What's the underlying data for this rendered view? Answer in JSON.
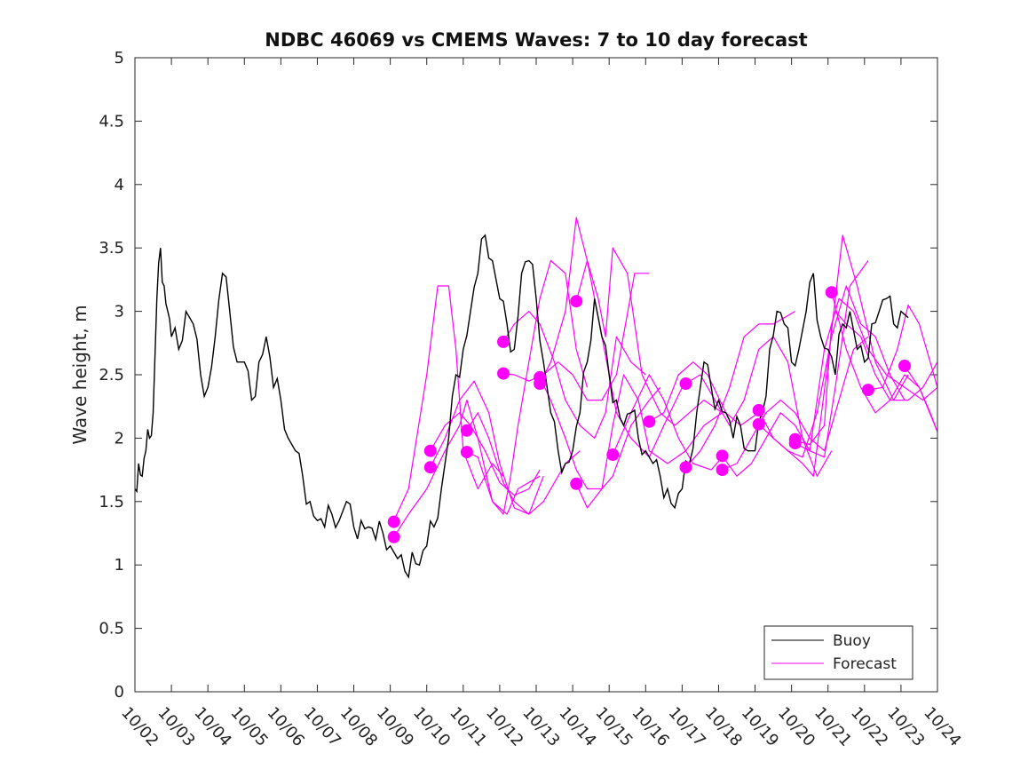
{
  "chart_data": {
    "type": "line",
    "title": "NDBC 46069 vs CMEMS Waves: 7 to 10 day forecast",
    "xlabel": "",
    "ylabel": "Wave height, m",
    "x_unit": "days since 10/02",
    "xlim": [
      0,
      22
    ],
    "ylim": [
      0,
      5
    ],
    "yticks": [
      0,
      0.5,
      1,
      1.5,
      2,
      2.5,
      3,
      3.5,
      4,
      4.5,
      5
    ],
    "ytick_labels": [
      "0",
      "0.5",
      "1",
      "1.5",
      "2",
      "2.5",
      "3",
      "3.5",
      "4",
      "4.5",
      "5"
    ],
    "xtick_labels": [
      "10/02",
      "10/03",
      "10/04",
      "10/05",
      "10/06",
      "10/07",
      "10/08",
      "10/09",
      "10/10",
      "10/11",
      "10/12",
      "10/13",
      "10/14",
      "10/15",
      "10/16",
      "10/17",
      "10/18",
      "10/19",
      "10/20",
      "10/21",
      "10/22",
      "10/23",
      "10/24"
    ],
    "grid": false,
    "legend_position": "bottom-right",
    "legend": [
      "Buoy",
      "Forecast"
    ],
    "colors": {
      "buoy": "#000000",
      "forecast": "#ff00ff",
      "axis": "#262626"
    },
    "buoy": {
      "name": "Buoy",
      "x": [
        0,
        0.1,
        0.2,
        0.3,
        0.4,
        0.5,
        0.6,
        0.7,
        0.8,
        0.9,
        1,
        1.2,
        1.4,
        1.6,
        1.8,
        2,
        2.2,
        2.4,
        2.6,
        2.8,
        3,
        3.2,
        3.4,
        3.6,
        3.8,
        4,
        4.2,
        4.4,
        4.6,
        4.8,
        5,
        5.2,
        5.4,
        5.6,
        5.8,
        6,
        6.2,
        6.4,
        6.6,
        6.8,
        7,
        7.2,
        7.4,
        7.6,
        7.8,
        8,
        8.2,
        8.4,
        8.6,
        8.8,
        9,
        9.2,
        9.4,
        9.6,
        9.8,
        10,
        10.2,
        10.4,
        10.6,
        10.8,
        11,
        11.2,
        11.4,
        11.6,
        11.8,
        12,
        12.2,
        12.4,
        12.6,
        12.8,
        13,
        13.2,
        13.4,
        13.6,
        13.8,
        14,
        14.2,
        14.4,
        14.6,
        14.8,
        15,
        15.2,
        15.4,
        15.6,
        15.8,
        16,
        16.2,
        16.4,
        16.6,
        16.8,
        17,
        17.2,
        17.4,
        17.6,
        17.8,
        18,
        18.2,
        18.4,
        18.6,
        18.8,
        19,
        19.2,
        19.4,
        19.6,
        19.8,
        20,
        20.2,
        20.4,
        20.6,
        20.8,
        21,
        21.2
      ],
      "values": [
        1.6,
        1.8,
        1.7,
        1.9,
        2.0,
        2.2,
        3.1,
        3.5,
        3.2,
        3.0,
        2.8,
        2.7,
        3.0,
        2.9,
        2.5,
        2.4,
        2.8,
        3.3,
        3.0,
        2.6,
        2.6,
        2.3,
        2.6,
        2.8,
        2.4,
        2.3,
        2.0,
        1.9,
        1.7,
        1.5,
        1.35,
        1.3,
        1.4,
        1.35,
        1.5,
        1.3,
        1.35,
        1.3,
        1.2,
        1.25,
        1.15,
        1.05,
        0.95,
        1.1,
        1.0,
        1.15,
        1.3,
        1.6,
        2.0,
        2.5,
        2.7,
        3.0,
        3.3,
        3.6,
        3.4,
        3.1,
        2.9,
        2.7,
        3.3,
        3.4,
        3.1,
        2.6,
        2.2,
        1.9,
        1.8,
        1.9,
        2.2,
        2.6,
        3.1,
        2.8,
        2.5,
        2.3,
        2.1,
        2.2,
        2.0,
        1.9,
        1.8,
        1.7,
        1.6,
        1.45,
        1.6,
        1.8,
        2.2,
        2.6,
        2.4,
        2.3,
        2.2,
        2.0,
        2.1,
        1.9,
        1.9,
        2.2,
        2.7,
        3.0,
        2.9,
        2.6,
        2.7,
        3.0,
        3.3,
        2.8,
        2.7,
        2.5,
        2.9,
        3.0,
        2.7,
        2.6,
        2.9,
        3.0,
        3.1,
        2.9,
        3.0,
        2.95
      ]
    },
    "forecast_runs": [
      {
        "x": [
          7.1,
          7.5,
          8,
          8.3,
          8.6,
          8.8,
          9,
          9.4,
          9.8,
          10.1
        ],
        "values": [
          1.35,
          1.6,
          2.5,
          3.2,
          3.2,
          2.7,
          1.9,
          1.6,
          1.8,
          1.7
        ]
      },
      {
        "x": [
          7.1,
          7.5,
          8,
          8.5,
          8.9,
          9.1,
          9.4,
          9.8,
          10.2,
          10.5,
          11.1
        ],
        "values": [
          1.22,
          1.4,
          1.6,
          1.9,
          2.1,
          2.3,
          2.0,
          1.5,
          1.4,
          1.6,
          1.7
        ]
      },
      {
        "x": [
          8.1,
          8.5,
          8.9,
          9.2,
          9.6,
          10,
          10.4,
          10.8,
          11.1
        ],
        "values": [
          1.9,
          2.1,
          2.2,
          2.1,
          1.9,
          1.65,
          1.55,
          1.6,
          1.75
        ]
      },
      {
        "x": [
          8.1,
          8.5,
          8.9,
          9.3,
          9.7,
          10,
          10.4,
          10.8,
          11.2,
          11.8,
          12.2
        ],
        "values": [
          1.77,
          2.0,
          2.3,
          2.45,
          2.2,
          1.8,
          1.45,
          1.4,
          1.5,
          1.8,
          1.9
        ]
      },
      {
        "x": [
          9.1,
          9.4,
          9.7,
          10.1,
          10.4,
          10.8,
          11.2
        ],
        "values": [
          2.06,
          2.2,
          2.0,
          1.65,
          1.5,
          1.4,
          1.7
        ]
      },
      {
        "x": [
          9.1,
          9.4,
          9.8,
          10.1,
          10.3,
          10.5,
          10.8,
          11.1,
          11.4,
          11.8,
          12.1,
          12.4
        ],
        "values": [
          1.89,
          1.85,
          1.5,
          1.4,
          1.7,
          2.1,
          2.6,
          3.1,
          3.4,
          3.3,
          2.7,
          2.4
        ]
      },
      {
        "x": [
          10.1,
          10.4,
          10.8,
          11.1,
          11.5,
          11.8,
          12.2,
          12.6,
          12.9,
          13.2,
          13.6,
          14
        ],
        "values": [
          2.76,
          2.9,
          3.0,
          2.9,
          2.6,
          2.3,
          2.1,
          2.0,
          2.2,
          2.8,
          2.6,
          2.5
        ]
      },
      {
        "x": [
          10.1,
          10.4,
          10.8,
          11.2,
          11.6,
          12,
          12.4,
          12.8,
          13.2,
          13.7,
          14.1
        ],
        "values": [
          2.51,
          2.5,
          2.45,
          2.5,
          2.6,
          2.5,
          2.3,
          2.3,
          2.5,
          3.3,
          3.3
        ]
      },
      {
        "x": [
          11.1,
          11.4,
          11.8,
          12.1,
          12.4,
          12.8,
          13.1,
          13.6,
          14.1,
          14.4
        ],
        "values": [
          2.48,
          2.3,
          2.0,
          1.75,
          1.6,
          1.6,
          1.7,
          2.1,
          2.3,
          2.4
        ]
      },
      {
        "x": [
          11.1,
          11.4,
          11.8,
          12.1,
          12.4,
          12.8,
          13.2,
          13.6,
          14.1,
          14.5,
          15
        ],
        "values": [
          2.43,
          2.6,
          3.0,
          3.74,
          3.4,
          2.8,
          2.2,
          2.0,
          1.85,
          2.1,
          2.4
        ]
      },
      {
        "x": [
          12.1,
          12.4,
          12.8,
          13.1,
          13.4,
          13.8,
          14.1,
          14.6,
          15.1,
          15.6,
          16.1
        ],
        "values": [
          1.64,
          1.45,
          1.6,
          2.1,
          2.5,
          2.3,
          1.9,
          1.8,
          1.9,
          2.1,
          2.2
        ]
      },
      {
        "x": [
          12.1,
          12.4,
          12.7,
          12.9,
          13.1,
          13.5,
          13.9,
          14.4,
          14.8,
          15.2,
          15.6,
          16.1
        ],
        "values": [
          3.08,
          3.4,
          3.1,
          2.8,
          3.5,
          3.3,
          2.5,
          2.2,
          2.1,
          2.2,
          2.3,
          2.2
        ]
      },
      {
        "x": [
          13.1,
          13.6,
          14.1,
          14.5,
          14.9,
          15.3,
          15.8,
          16.1
        ],
        "values": [
          1.87,
          2.2,
          2.5,
          2.3,
          2.0,
          1.8,
          1.75,
          1.85
        ]
      },
      {
        "x": [
          14.1,
          14.5,
          14.9,
          15.3,
          15.7,
          16.2,
          16.6,
          17.1
        ],
        "values": [
          2.13,
          2.2,
          2.5,
          2.6,
          2.5,
          2.2,
          2.1,
          2.2
        ]
      },
      {
        "x": [
          15.1,
          15.5,
          15.9,
          16.3,
          16.7,
          17.1,
          17.5,
          18.1
        ],
        "values": [
          1.77,
          1.9,
          2.1,
          2.4,
          2.8,
          2.9,
          2.9,
          3.0
        ]
      },
      {
        "x": [
          15.1,
          15.5,
          15.9,
          16.3,
          16.7,
          17.1,
          17.5,
          17.9,
          18.3,
          18.7,
          19.1
        ],
        "values": [
          2.43,
          2.5,
          2.3,
          2.1,
          2.3,
          2.7,
          2.8,
          2.6,
          2.0,
          1.7,
          1.9
        ]
      },
      {
        "x": [
          16.1,
          16.5,
          16.9,
          17.3,
          17.7,
          18.1,
          18.5,
          18.9,
          19.2,
          19.6,
          20.1
        ],
        "values": [
          1.86,
          1.7,
          1.8,
          2.0,
          2.2,
          2.1,
          1.9,
          1.85,
          2.4,
          3.2,
          3.4
        ]
      },
      {
        "x": [
          16.1,
          16.5,
          16.9,
          17.3,
          17.7,
          18.1,
          18.5,
          18.9,
          19.3,
          19.7,
          20.1
        ],
        "values": [
          1.75,
          1.8,
          2.0,
          2.2,
          2.3,
          2.2,
          2.0,
          1.9,
          2.3,
          2.7,
          2.8
        ]
      },
      {
        "x": [
          17.1,
          17.5,
          17.9,
          18.3,
          18.7,
          19.1,
          19.5,
          19.9,
          20.3,
          20.7,
          21.1
        ],
        "values": [
          2.22,
          2.0,
          1.9,
          1.85,
          2.2,
          2.8,
          3.2,
          2.9,
          2.8,
          2.5,
          2.3
        ]
      },
      {
        "x": [
          17.1,
          17.5,
          17.9,
          18.3,
          18.6,
          19,
          19.4,
          19.8,
          20.3,
          20.8,
          21.2
        ],
        "values": [
          2.11,
          2.0,
          1.9,
          1.8,
          1.7,
          2.6,
          3.6,
          3.2,
          2.6,
          2.3,
          2.5
        ]
      },
      {
        "x": [
          18.1,
          18.5,
          18.9,
          19.2,
          19.5,
          19.9,
          20.3,
          20.7,
          21.2,
          21.6,
          22
        ],
        "values": [
          1.96,
          1.9,
          2.7,
          3.0,
          2.9,
          2.8,
          2.5,
          2.3,
          2.3,
          2.4,
          2.6
        ]
      },
      {
        "x": [
          18.1,
          18.5,
          18.9,
          19.1,
          19.3,
          19.7,
          20.1,
          20.6,
          21.1,
          21.6,
          22
        ],
        "values": [
          1.98,
          1.95,
          2.1,
          2.9,
          3.1,
          3.0,
          2.7,
          2.5,
          2.4,
          2.3,
          2.4
        ]
      },
      {
        "x": [
          19.1,
          19.5,
          19.9,
          20.3,
          20.7,
          21.1,
          21.5,
          22
        ],
        "values": [
          3.15,
          2.7,
          2.4,
          2.2,
          2.3,
          2.5,
          2.4,
          2.05
        ]
      },
      {
        "x": [
          20.1,
          20.5,
          20.9,
          21.2,
          21.5,
          21.8,
          22
        ],
        "values": [
          2.38,
          2.4,
          2.7,
          3.05,
          2.9,
          2.6,
          2.4
        ]
      },
      {
        "x": [
          21.1,
          21.5,
          21.8,
          22
        ],
        "values": [
          2.57,
          2.4,
          2.2,
          2.05
        ]
      }
    ],
    "forecast_markers": {
      "name": "Forecast initial points",
      "x": [
        7.1,
        7.1,
        8.1,
        8.1,
        9.1,
        9.1,
        10.1,
        10.1,
        11.1,
        11.1,
        12.1,
        12.1,
        13.1,
        14.1,
        15.1,
        15.1,
        16.1,
        16.1,
        17.1,
        17.1,
        18.1,
        18.1,
        19.1,
        20.1,
        21.1
      ],
      "values": [
        1.34,
        1.22,
        1.9,
        1.77,
        2.06,
        1.89,
        2.76,
        2.51,
        2.48,
        2.43,
        3.08,
        1.64,
        1.87,
        2.13,
        2.43,
        1.77,
        1.86,
        1.75,
        2.22,
        2.11,
        1.99,
        1.96,
        3.15,
        2.38,
        2.57
      ]
    }
  }
}
